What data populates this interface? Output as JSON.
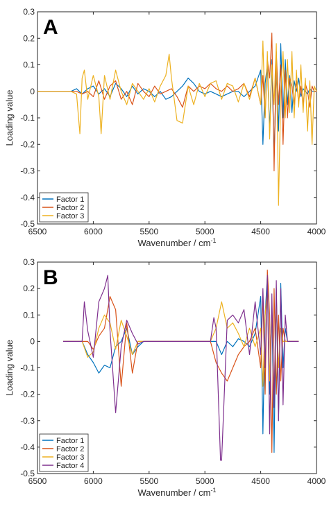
{
  "chart_data": [
    {
      "type": "line",
      "panel_label": "A",
      "xlabel": "Wavenumber / cm",
      "xlabel_sup": "-1",
      "ylabel": "Loading value",
      "xlim": [
        6500,
        4000
      ],
      "ylim": [
        -0.5,
        0.3
      ],
      "x_reversed": true,
      "xticks": [
        6500,
        6000,
        5500,
        5000,
        4500,
        4000
      ],
      "yticks": [
        -0.5,
        -0.4,
        -0.3,
        -0.2,
        -0.1,
        0,
        0.1,
        0.2,
        0.3
      ],
      "ytick_labels": [
        "-0.5",
        "-0.4",
        "-0.3",
        "-0.2",
        "-0.1",
        "0",
        "0.1",
        "0.2",
        "0.3"
      ],
      "legend_position": "bottom-left",
      "series": [
        {
          "name": "Factor 1",
          "color": "#0072bd",
          "x": [
            6500,
            6300,
            6200,
            6150,
            6100,
            6050,
            6000,
            5950,
            5900,
            5850,
            5800,
            5750,
            5700,
            5650,
            5600,
            5550,
            5500,
            5450,
            5400,
            5350,
            5300,
            5250,
            5200,
            5150,
            5100,
            5050,
            5000,
            4950,
            4900,
            4850,
            4800,
            4750,
            4700,
            4650,
            4600,
            4550,
            4500,
            4480,
            4460,
            4440,
            4420,
            4400,
            4380,
            4360,
            4340,
            4320,
            4300,
            4280,
            4260,
            4240,
            4220,
            4200,
            4180,
            4160,
            4140,
            4120,
            4100,
            4080,
            4060,
            4040,
            4020,
            4000
          ],
          "y": [
            0,
            0,
            0,
            0.01,
            -0.01,
            0.01,
            0.02,
            -0.01,
            0.01,
            -0.02,
            0.03,
            0.01,
            -0.02,
            0.02,
            -0.01,
            0.01,
            0.0,
            -0.02,
            0.0,
            -0.03,
            -0.02,
            0.0,
            0.02,
            0.05,
            0.03,
            0.0,
            -0.01,
            0.0,
            -0.01,
            -0.02,
            -0.01,
            0.0,
            0.0,
            -0.02,
            0.0,
            0.02,
            0.08,
            -0.2,
            0.03,
            0.1,
            -0.15,
            0.12,
            -0.25,
            0.08,
            -0.15,
            0.18,
            -0.1,
            0.12,
            -0.05,
            0.06,
            -0.08,
            0.04,
            0.0,
            0.05,
            -0.02,
            0.01,
            0.0,
            -0.01,
            0.01,
            0.0,
            0.0,
            0.0
          ]
        },
        {
          "name": "Factor 2",
          "color": "#d95319",
          "x": [
            6500,
            6300,
            6200,
            6150,
            6100,
            6050,
            6000,
            5950,
            5900,
            5850,
            5800,
            5750,
            5700,
            5650,
            5600,
            5550,
            5500,
            5450,
            5400,
            5350,
            5300,
            5250,
            5200,
            5150,
            5100,
            5050,
            5000,
            4950,
            4900,
            4850,
            4800,
            4750,
            4700,
            4650,
            4600,
            4550,
            4500,
            4480,
            4460,
            4440,
            4420,
            4400,
            4380,
            4360,
            4340,
            4320,
            4300,
            4280,
            4260,
            4240,
            4220,
            4200,
            4180,
            4160,
            4140,
            4120,
            4100,
            4080,
            4060,
            4040,
            4020,
            4000
          ],
          "y": [
            0,
            0,
            0,
            0.0,
            -0.01,
            0.0,
            -0.02,
            0.04,
            -0.03,
            0.02,
            0.04,
            -0.03,
            0.0,
            -0.05,
            0.03,
            0.0,
            -0.02,
            0.02,
            -0.01,
            0.0,
            0.01,
            -0.02,
            -0.06,
            0.02,
            0.0,
            0.02,
            0.01,
            0.03,
            0.01,
            0.0,
            0.02,
            0.0,
            0.01,
            0.03,
            -0.02,
            0.05,
            -0.05,
            0.06,
            -0.1,
            0.12,
            0.05,
            0.22,
            -0.3,
            0.15,
            -0.05,
            0.1,
            -0.2,
            0.08,
            -0.1,
            0.05,
            0.02,
            -0.05,
            0.04,
            -0.04,
            0.02,
            -0.05,
            0.03,
            0.0,
            -0.06,
            0.02,
            0.0,
            0.0
          ]
        },
        {
          "name": "Factor 3",
          "color": "#edb120",
          "x": [
            6500,
            6300,
            6200,
            6150,
            6120,
            6100,
            6080,
            6050,
            6000,
            5950,
            5930,
            5900,
            5850,
            5800,
            5750,
            5700,
            5650,
            5600,
            5550,
            5500,
            5450,
            5400,
            5350,
            5320,
            5300,
            5250,
            5200,
            5150,
            5100,
            5050,
            5000,
            4950,
            4900,
            4850,
            4800,
            4750,
            4700,
            4650,
            4600,
            4550,
            4500,
            4480,
            4460,
            4440,
            4420,
            4400,
            4380,
            4360,
            4340,
            4320,
            4300,
            4280,
            4260,
            4240,
            4220,
            4200,
            4180,
            4160,
            4140,
            4120,
            4100,
            4080,
            4060,
            4040,
            4020,
            4000
          ],
          "y": [
            0,
            0,
            0,
            -0.01,
            -0.16,
            0.05,
            0.08,
            -0.03,
            0.06,
            -0.02,
            -0.16,
            0.06,
            -0.03,
            0.08,
            0.0,
            -0.05,
            0.03,
            0.0,
            -0.03,
            0.01,
            -0.04,
            0.02,
            0.06,
            0.14,
            0.05,
            -0.11,
            -0.12,
            0.02,
            -0.05,
            0.03,
            -0.02,
            0.03,
            0.04,
            -0.03,
            0.03,
            0.02,
            -0.04,
            0.03,
            -0.03,
            0.05,
            -0.05,
            0.19,
            -0.1,
            0.15,
            -0.18,
            0.1,
            -0.05,
            0.18,
            -0.43,
            0.0,
            0.15,
            -0.1,
            0.12,
            -0.08,
            0.15,
            -0.1,
            0.08,
            -0.06,
            0.1,
            -0.08,
            0.05,
            -0.15,
            0.04,
            -0.2,
            0.02,
            0.0
          ]
        }
      ]
    },
    {
      "type": "line",
      "panel_label": "B",
      "xlabel": "Wavenumber / cm",
      "xlabel_sup": "-1",
      "ylabel": "Loading value",
      "xlim": [
        6500,
        4000
      ],
      "ylim": [
        -0.5,
        0.3
      ],
      "x_reversed": true,
      "xticks": [
        6500,
        6000,
        5500,
        5000,
        4500,
        4000
      ],
      "yticks": [
        -0.5,
        -0.4,
        -0.3,
        -0.2,
        -0.1,
        0,
        0.1,
        0.2,
        0.3
      ],
      "ytick_labels": [
        "-0.5",
        "-0.4",
        "-0.3",
        "-0.2",
        "-0.1",
        "0",
        "0.1",
        "0.2",
        "0.3"
      ],
      "legend_position": "bottom-left",
      "series": [
        {
          "name": "Factor 1",
          "color": "#0072bd",
          "x": [
            6270,
            6100,
            6050,
            6000,
            5950,
            5900,
            5850,
            5800,
            5750,
            5700,
            5650,
            5600,
            5550,
            4950,
            4900,
            4850,
            4800,
            4750,
            4700,
            4650,
            4600,
            4550,
            4500,
            4480,
            4460,
            4440,
            4420,
            4400,
            4380,
            4360,
            4340,
            4320,
            4300,
            4280,
            4260,
            4240,
            4200,
            4160
          ],
          "y": [
            0,
            0,
            -0.05,
            -0.08,
            -0.12,
            -0.09,
            -0.1,
            -0.02,
            0.0,
            0.05,
            -0.05,
            -0.02,
            0.0,
            0,
            0.0,
            -0.05,
            0.0,
            -0.02,
            0.01,
            0.0,
            -0.02,
            0.03,
            0.17,
            -0.35,
            0.1,
            0.25,
            -0.2,
            0.15,
            -0.42,
            0.2,
            -0.3,
            0.22,
            -0.1,
            0.05,
            0.0,
            0.0,
            0,
            0
          ]
        },
        {
          "name": "Factor 2",
          "color": "#d95319",
          "x": [
            6270,
            6100,
            6050,
            6000,
            5950,
            5900,
            5850,
            5800,
            5750,
            5700,
            5650,
            5600,
            5550,
            4950,
            4900,
            4850,
            4800,
            4750,
            4700,
            4650,
            4600,
            4550,
            4500,
            4480,
            4460,
            4440,
            4420,
            4400,
            4380,
            4360,
            4340,
            4320,
            4300,
            4280,
            4260,
            4240,
            4200,
            4160
          ],
          "y": [
            0,
            0,
            0.0,
            -0.03,
            0.02,
            0.05,
            0.17,
            0.12,
            -0.17,
            0.07,
            -0.12,
            0.0,
            0,
            0,
            -0.08,
            -0.12,
            -0.15,
            -0.1,
            -0.05,
            -0.02,
            0.0,
            0.05,
            -0.1,
            0.18,
            -0.2,
            0.27,
            0.1,
            -0.42,
            0.2,
            -0.2,
            0.1,
            -0.15,
            0.05,
            0.0,
            0.0,
            0.0,
            0,
            0
          ]
        },
        {
          "name": "Factor 3",
          "color": "#edb120",
          "x": [
            6270,
            6100,
            6050,
            6000,
            5950,
            5900,
            5850,
            5800,
            5750,
            5700,
            5650,
            5600,
            5550,
            4950,
            4900,
            4850,
            4800,
            4750,
            4700,
            4650,
            4600,
            4550,
            4500,
            4480,
            4460,
            4440,
            4420,
            4400,
            4380,
            4360,
            4340,
            4320,
            4300,
            4280,
            4260,
            4240,
            4200,
            4160
          ],
          "y": [
            0,
            0,
            -0.06,
            -0.04,
            0.05,
            0.1,
            0.07,
            -0.03,
            0.08,
            0.02,
            -0.05,
            0.0,
            0,
            0,
            0.05,
            0.15,
            0.05,
            0.07,
            0.03,
            -0.02,
            0.05,
            -0.02,
            0.05,
            -0.17,
            0.1,
            0.2,
            -0.15,
            0.12,
            -0.2,
            0.15,
            -0.1,
            0.05,
            0.0,
            0.0,
            0.0,
            0.0,
            0,
            0
          ]
        },
        {
          "name": "Factor 4",
          "color": "#7e2f8e",
          "x": [
            6270,
            6100,
            6080,
            6050,
            6000,
            5950,
            5900,
            5870,
            5850,
            5800,
            5750,
            5700,
            5650,
            5600,
            5550,
            4950,
            4920,
            4900,
            4880,
            4860,
            4850,
            4800,
            4750,
            4700,
            4650,
            4600,
            4550,
            4500,
            4480,
            4460,
            4440,
            4420,
            4400,
            4380,
            4360,
            4340,
            4320,
            4300,
            4280,
            4260,
            4240,
            4200,
            4160
          ],
          "y": [
            0,
            0,
            0.15,
            0.04,
            -0.06,
            0.15,
            0.2,
            0.25,
            0.04,
            -0.27,
            -0.02,
            0.08,
            0.03,
            -0.01,
            0,
            0,
            0.09,
            0.05,
            -0.2,
            -0.45,
            -0.45,
            0.08,
            0.1,
            0.07,
            0.12,
            -0.05,
            0.15,
            -0.05,
            0.2,
            -0.1,
            0.25,
            -0.35,
            0.18,
            -0.25,
            0.23,
            -0.3,
            0.2,
            -0.24,
            0.1,
            0.0,
            0.0,
            0,
            0
          ]
        }
      ]
    }
  ]
}
